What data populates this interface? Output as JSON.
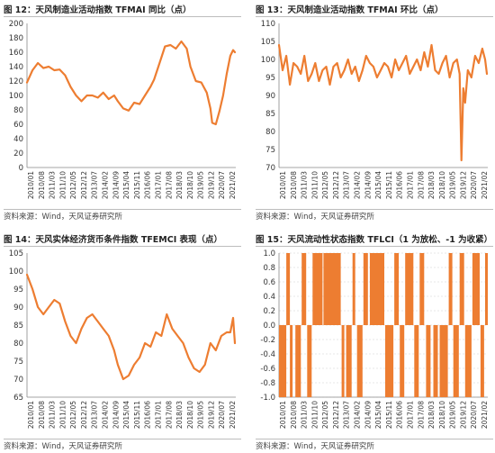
{
  "source_label": "资料来源：Wind，天风证券研究所",
  "line_color": "#ED7D31",
  "charts": [
    {
      "title": "图 12：天风制造业活动指数 TFMAI 同比（点）",
      "chart_data": {
        "type": "line",
        "ylim": [
          0,
          200
        ],
        "yticks": [
          0,
          20,
          40,
          60,
          80,
          100,
          120,
          140,
          160,
          180,
          200
        ],
        "x_range": [
          2010.0,
          2021.5
        ],
        "xtick_labels": [
          "2010/01",
          "2010/08",
          "2011/03",
          "2011/10",
          "2012/05",
          "2012/12",
          "2013/07",
          "2014/02",
          "2014/09",
          "2015/04",
          "2015/11",
          "2016/06",
          "2017/01",
          "2017/08",
          "2018/03",
          "2018/10",
          "2019/05",
          "2019/12",
          "2020/07",
          "2021/02"
        ],
        "x": [
          2010.0,
          2010.3,
          2010.6,
          2010.9,
          2011.2,
          2011.5,
          2011.8,
          2012.1,
          2012.4,
          2012.7,
          2013.0,
          2013.3,
          2013.6,
          2013.9,
          2014.2,
          2014.5,
          2014.8,
          2015.0,
          2015.3,
          2015.6,
          2015.9,
          2016.2,
          2016.5,
          2016.8,
          2017.0,
          2017.3,
          2017.6,
          2017.9,
          2018.2,
          2018.5,
          2018.8,
          2019.0,
          2019.3,
          2019.6,
          2019.9,
          2020.1,
          2020.2,
          2020.4,
          2020.6,
          2020.8,
          2021.0,
          2021.2,
          2021.35,
          2021.45
        ],
        "y": [
          118,
          135,
          145,
          138,
          140,
          135,
          136,
          128,
          112,
          100,
          92,
          100,
          100,
          97,
          104,
          95,
          100,
          92,
          82,
          79,
          90,
          88,
          100,
          112,
          122,
          145,
          168,
          170,
          165,
          175,
          165,
          140,
          120,
          118,
          104,
          82,
          62,
          60,
          78,
          100,
          130,
          155,
          163,
          160
        ]
      }
    },
    {
      "title": "图 13：天风制造业活动指数 TFMAI 环比（点）",
      "chart_data": {
        "type": "line",
        "ylim": [
          70,
          110
        ],
        "yticks": [
          70,
          75,
          80,
          85,
          90,
          95,
          100,
          105,
          110
        ],
        "x_range": [
          2010.0,
          2021.5
        ],
        "xtick_labels": [
          "2010/01",
          "2010/08",
          "2011/03",
          "2011/10",
          "2012/05",
          "2012/12",
          "2013/07",
          "2014/02",
          "2014/09",
          "2015/04",
          "2015/11",
          "2016/06",
          "2017/01",
          "2017/08",
          "2018/03",
          "2018/10",
          "2019/05",
          "2019/12",
          "2020/07",
          "2021/02"
        ],
        "x": [
          2010.0,
          2010.2,
          2010.4,
          2010.6,
          2010.8,
          2011.0,
          2011.2,
          2011.4,
          2011.6,
          2011.8,
          2012.0,
          2012.2,
          2012.4,
          2012.6,
          2012.8,
          2013.0,
          2013.2,
          2013.4,
          2013.6,
          2013.8,
          2014.0,
          2014.2,
          2014.4,
          2014.6,
          2014.8,
          2015.0,
          2015.2,
          2015.4,
          2015.6,
          2015.8,
          2016.0,
          2016.2,
          2016.4,
          2016.6,
          2016.8,
          2017.0,
          2017.2,
          2017.4,
          2017.6,
          2017.8,
          2018.0,
          2018.2,
          2018.4,
          2018.6,
          2018.8,
          2019.0,
          2019.2,
          2019.4,
          2019.6,
          2019.8,
          2019.95,
          2020.05,
          2020.15,
          2020.25,
          2020.4,
          2020.6,
          2020.8,
          2021.0,
          2021.2,
          2021.35,
          2021.45
        ],
        "y": [
          104,
          97,
          101,
          93,
          99,
          98,
          96,
          101,
          94,
          96,
          99,
          94,
          97,
          98,
          93,
          98,
          99,
          95,
          97,
          100,
          96,
          98,
          94,
          97,
          101,
          99,
          98,
          95,
          97,
          99,
          98,
          95,
          100,
          97,
          99,
          101,
          96,
          98,
          100,
          97,
          102,
          98,
          104,
          97,
          96,
          99,
          101,
          95,
          99,
          100,
          96,
          72,
          92,
          88,
          97,
          95,
          101,
          99,
          103,
          100,
          96
        ]
      }
    },
    {
      "title": "图 14：天风实体经济货币条件指数 TFEMCI 表现（点）",
      "chart_data": {
        "type": "line",
        "ylim": [
          65,
          105
        ],
        "yticks": [
          65,
          70,
          75,
          80,
          85,
          90,
          95,
          100,
          105
        ],
        "x_range": [
          2010.0,
          2021.5
        ],
        "xtick_labels": [
          "2010/01",
          "2010/08",
          "2011/03",
          "2011/10",
          "2012/05",
          "2012/12",
          "2013/07",
          "2014/02",
          "2014/09",
          "2015/04",
          "2015/11",
          "2016/06",
          "2017/01",
          "2017/08",
          "2018/03",
          "2018/10",
          "2019/05",
          "2019/12",
          "2020/07",
          "2021/02"
        ],
        "x": [
          2010.0,
          2010.3,
          2010.6,
          2010.9,
          2011.2,
          2011.5,
          2011.8,
          2012.1,
          2012.4,
          2012.7,
          2013.0,
          2013.3,
          2013.6,
          2013.9,
          2014.2,
          2014.5,
          2014.8,
          2015.0,
          2015.3,
          2015.6,
          2015.9,
          2016.2,
          2016.5,
          2016.8,
          2017.1,
          2017.4,
          2017.7,
          2018.0,
          2018.3,
          2018.6,
          2018.9,
          2019.2,
          2019.5,
          2019.8,
          2020.1,
          2020.4,
          2020.7,
          2021.0,
          2021.2,
          2021.35,
          2021.45
        ],
        "y": [
          99,
          95,
          90,
          88,
          90,
          92,
          91,
          86,
          82,
          80,
          84,
          87,
          88,
          86,
          84,
          82,
          78,
          74,
          70,
          71,
          74,
          76,
          80,
          79,
          83,
          82,
          88,
          84,
          82,
          80,
          76,
          73,
          72,
          74,
          80,
          78,
          82,
          83,
          83,
          87,
          80
        ]
      }
    },
    {
      "title": "图 15：天风流动性状态指数 TFLCI（1 为放松、-1 为收紧）",
      "chart_data": {
        "type": "bar",
        "ylim": [
          -1.0,
          1.0
        ],
        "yticks": [
          -1.0,
          -0.8,
          -0.6,
          -0.4,
          -0.2,
          0.0,
          0.2,
          0.4,
          0.6,
          0.8,
          1.0
        ],
        "ytick_labels": [
          "-1.0",
          "-0.8",
          "-0.6",
          "-0.4",
          "-0.2",
          "0.0",
          "0.2",
          "0.4",
          "0.6",
          "0.8",
          "1.0"
        ],
        "x_range": [
          2010.0,
          2021.5
        ],
        "xtick_labels": [
          "2010/01",
          "2010/08",
          "2011/03",
          "2011/10",
          "2012/05",
          "2012/12",
          "2013/07",
          "2014/02",
          "2014/09",
          "2015/04",
          "2015/11",
          "2016/06",
          "2017/01",
          "2017/08",
          "2018/03",
          "2018/10",
          "2019/05",
          "2019/12",
          "2020/07",
          "2021/02"
        ],
        "segments": [
          {
            "start": 2010.0,
            "end": 2010.4,
            "value": -1
          },
          {
            "start": 2010.4,
            "end": 2010.6,
            "value": 1
          },
          {
            "start": 2010.6,
            "end": 2010.75,
            "value": -1
          },
          {
            "start": 2010.9,
            "end": 2011.2,
            "value": -1
          },
          {
            "start": 2011.25,
            "end": 2011.5,
            "value": 1
          },
          {
            "start": 2011.55,
            "end": 2011.8,
            "value": -1
          },
          {
            "start": 2011.85,
            "end": 2012.4,
            "value": 1
          },
          {
            "start": 2012.45,
            "end": 2013.1,
            "value": 1
          },
          {
            "start": 2013.1,
            "end": 2013.4,
            "value": 1
          },
          {
            "start": 2013.45,
            "end": 2013.6,
            "value": -1
          },
          {
            "start": 2013.7,
            "end": 2014.0,
            "value": -1
          },
          {
            "start": 2014.05,
            "end": 2014.2,
            "value": 1
          },
          {
            "start": 2014.3,
            "end": 2014.6,
            "value": -1
          },
          {
            "start": 2014.65,
            "end": 2014.9,
            "value": 1
          },
          {
            "start": 2015.0,
            "end": 2015.8,
            "value": 1
          },
          {
            "start": 2015.85,
            "end": 2016.3,
            "value": -1
          },
          {
            "start": 2016.35,
            "end": 2016.6,
            "value": 1
          },
          {
            "start": 2016.65,
            "end": 2016.9,
            "value": -1
          },
          {
            "start": 2016.95,
            "end": 2017.4,
            "value": 1
          },
          {
            "start": 2017.45,
            "end": 2017.7,
            "value": -1
          },
          {
            "start": 2017.75,
            "end": 2018.0,
            "value": 1
          },
          {
            "start": 2018.1,
            "end": 2018.35,
            "value": -1
          },
          {
            "start": 2018.5,
            "end": 2018.75,
            "value": -1
          },
          {
            "start": 2018.85,
            "end": 2019.3,
            "value": -1
          },
          {
            "start": 2019.35,
            "end": 2019.55,
            "value": 1
          },
          {
            "start": 2019.6,
            "end": 2019.9,
            "value": -1
          },
          {
            "start": 2019.95,
            "end": 2020.2,
            "value": 1
          },
          {
            "start": 2020.25,
            "end": 2020.6,
            "value": -1
          },
          {
            "start": 2020.65,
            "end": 2021.05,
            "value": 1
          },
          {
            "start": 2021.1,
            "end": 2021.3,
            "value": -1
          },
          {
            "start": 2021.35,
            "end": 2021.5,
            "value": 1
          }
        ]
      }
    }
  ]
}
